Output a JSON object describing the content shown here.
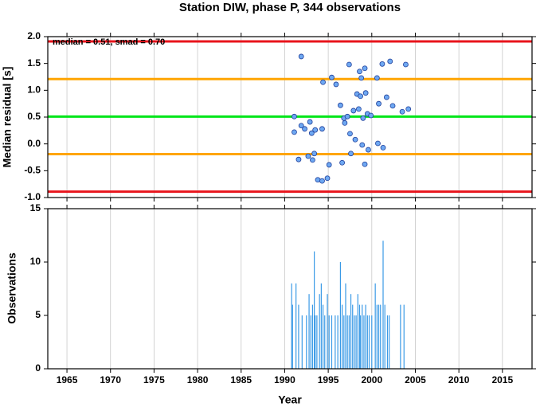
{
  "chart_data": [
    {
      "type": "scatter",
      "title": "Station DIW, phase P, 344 observations",
      "ylabel": "Median residual [s]",
      "annotation": "median = 0.51, smad = 0.70",
      "x": [
        1991.9,
        1991.1,
        1991.1,
        1991.9,
        1992.3,
        1991.6,
        1992.7,
        1992.9,
        1993.1,
        1993.5,
        1994.3,
        1993.4,
        1993.2,
        1993.8,
        1994.3,
        1994.9,
        1995.1,
        1994.4,
        1995.4,
        1995.9,
        1996.4,
        1996.6,
        1996.8,
        1996.9,
        1997.2,
        1997.4,
        1997.5,
        1997.6,
        1997.9,
        1998.1,
        1998.3,
        1998.5,
        1998.6,
        1998.7,
        1998.8,
        1998.9,
        1999.0,
        1999.2,
        1999.2,
        1999.3,
        1999.5,
        1999.6,
        1999.9,
        2000.6,
        2000.7,
        2000.8,
        2001.2,
        2001.3,
        2001.7,
        2002.1,
        2002.4,
        2003.5,
        2003.9,
        2004.2
      ],
      "values": [
        1.63,
        0.51,
        0.22,
        0.34,
        0.28,
        -0.29,
        -0.23,
        0.41,
        0.2,
        0.26,
        0.28,
        -0.18,
        -0.3,
        -0.67,
        -0.69,
        -0.64,
        -0.39,
        1.15,
        1.24,
        1.11,
        0.72,
        -0.35,
        0.48,
        0.39,
        0.51,
        1.48,
        0.19,
        -0.18,
        0.62,
        0.08,
        0.93,
        0.65,
        1.35,
        0.89,
        1.23,
        -0.02,
        0.48,
        1.41,
        -0.38,
        0.95,
        0.56,
        -0.11,
        0.53,
        1.23,
        0.01,
        0.75,
        1.49,
        -0.07,
        0.87,
        1.54,
        0.71,
        0.6,
        1.48,
        0.65
      ],
      "color": "#6ea8f2",
      "edge_color": "#1f3f9a",
      "hlines": [
        {
          "value": 1.91,
          "color": "#e8141c"
        },
        {
          "value": 1.21,
          "color": "#ffa500"
        },
        {
          "value": 0.51,
          "color": "#00e619"
        },
        {
          "value": -0.19,
          "color": "#ffa500"
        },
        {
          "value": -0.89,
          "color": "#e8141c"
        }
      ],
      "xlim": [
        1962.8,
        2018.4
      ],
      "xticks": [
        1965,
        1970,
        1975,
        1980,
        1985,
        1990,
        1995,
        2000,
        2005,
        2010,
        2015
      ],
      "ylim": [
        -1.0,
        2.0
      ],
      "yticks": [
        {
          "value": -1.0,
          "label": "-1.0"
        },
        -0.5,
        {
          "value": 0.0,
          "label": "0.0"
        },
        0.5,
        {
          "value": 1.0,
          "label": "1.0"
        },
        1.5,
        {
          "value": 2.0,
          "label": "2.0"
        }
      ],
      "grid": true
    },
    {
      "type": "bar",
      "ylabel": "Observations",
      "xlabel": "Year",
      "x": [
        1990.8,
        1990.9,
        1991.3,
        1991.6,
        1992.0,
        1992.5,
        1992.8,
        1993.0,
        1993.2,
        1993.4,
        1993.5,
        1993.7,
        1994.0,
        1994.2,
        1994.4,
        1994.6,
        1994.9,
        1995.1,
        1995.4,
        1995.8,
        1996.1,
        1996.4,
        1996.6,
        1996.8,
        1997.0,
        1997.2,
        1997.4,
        1997.6,
        1997.8,
        1998.0,
        1998.2,
        1998.4,
        1998.6,
        1998.7,
        1998.9,
        1999.1,
        1999.3,
        1999.5,
        1999.7,
        2000.0,
        2000.4,
        2000.6,
        2000.8,
        2001.0,
        2001.3,
        2001.5,
        2001.8,
        2002.0,
        2003.3,
        2003.7
      ],
      "values": [
        8,
        6,
        8,
        6,
        5,
        5,
        7,
        5,
        6,
        11,
        5,
        5,
        7,
        8,
        6,
        5,
        7,
        5,
        5,
        5,
        5,
        10,
        6,
        5,
        8,
        5,
        5,
        7,
        6,
        5,
        5,
        7,
        6,
        5,
        6,
        5,
        6,
        5,
        5,
        5,
        8,
        6,
        6,
        6,
        12,
        6,
        5,
        5,
        6,
        6
      ],
      "color": "#3a9ae6",
      "xlim": [
        1962.8,
        2018.4
      ],
      "xticks": [
        1965,
        1970,
        1975,
        1980,
        1985,
        1990,
        1995,
        2000,
        2005,
        2010,
        2015
      ],
      "ylim": [
        0,
        15
      ],
      "yticks": [
        0,
        5,
        10,
        15
      ],
      "grid": true
    }
  ]
}
